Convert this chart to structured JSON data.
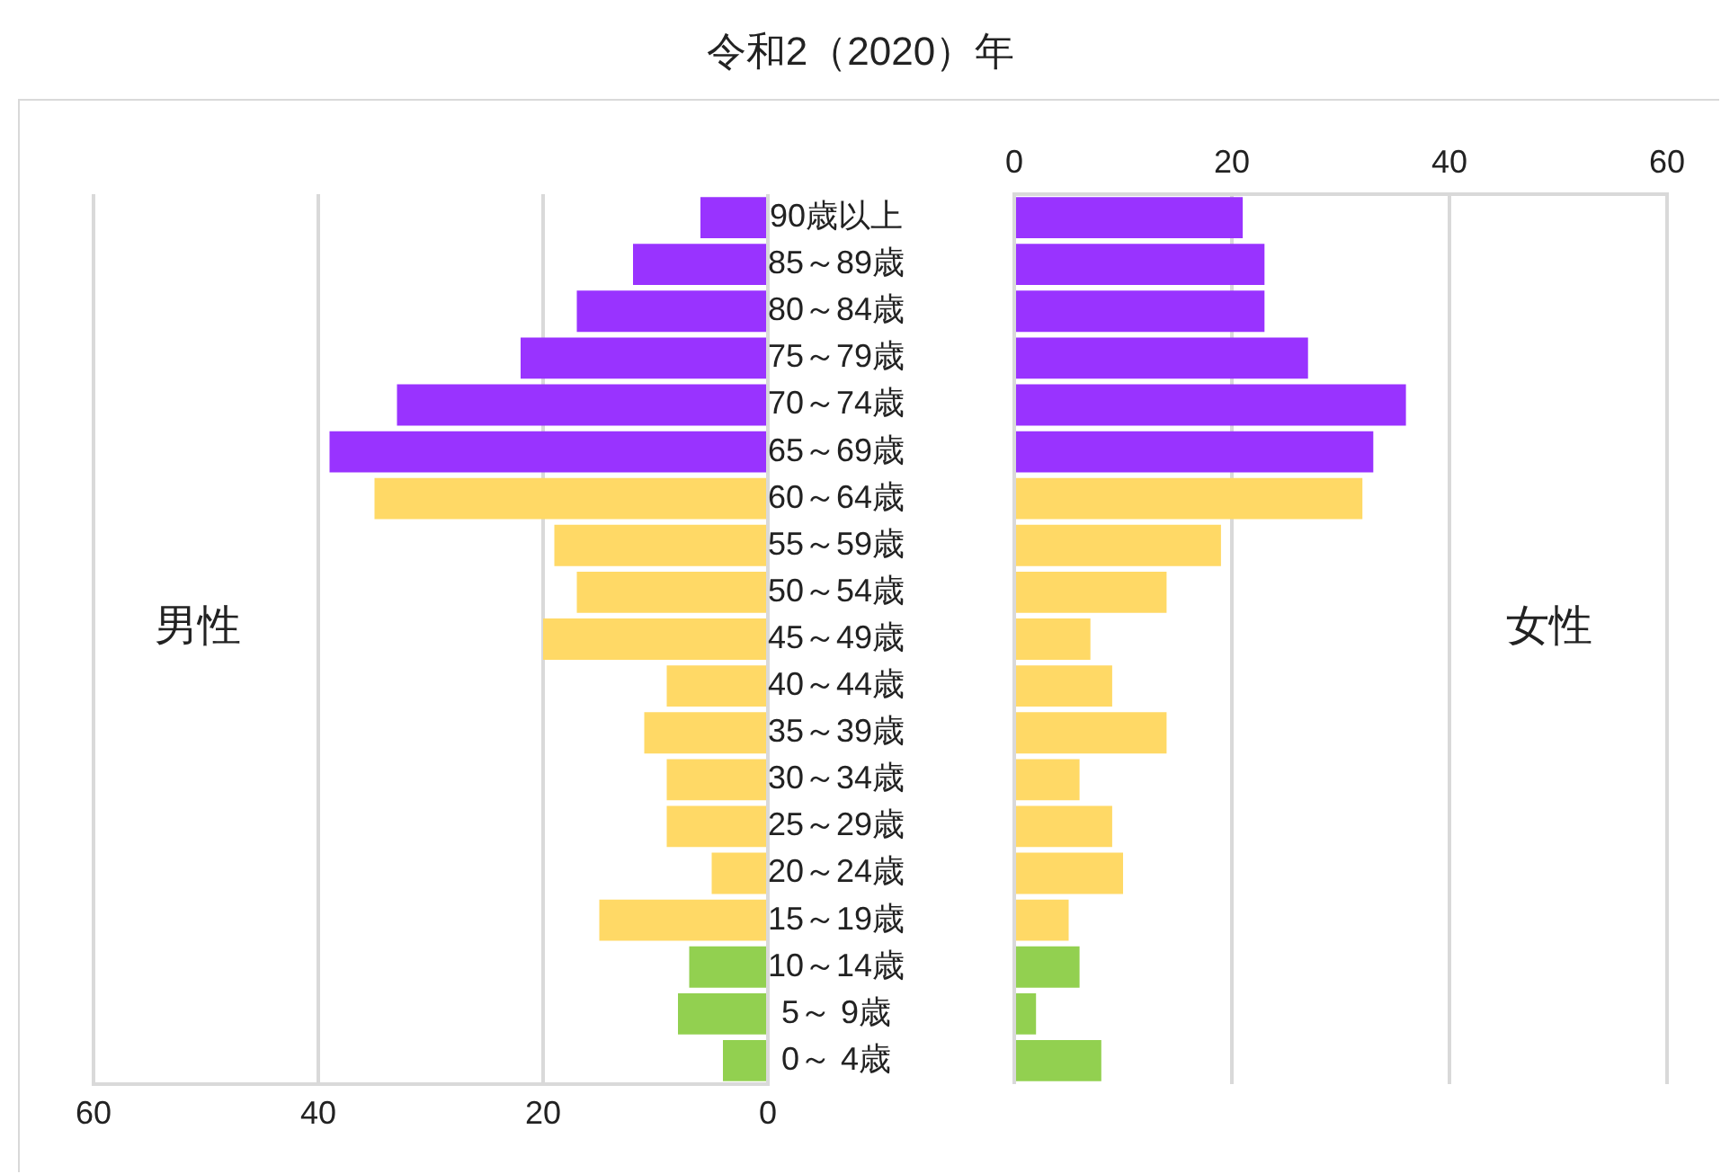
{
  "chart_data": [
    {
      "type": "bar",
      "orientation": "horizontal",
      "title": "令和2（2020）年",
      "annotations": [
        "男性"
      ],
      "categories": [
        "90歳以上",
        "85～89歳",
        "80～84歳",
        "75～79歳",
        "70～74歳",
        "65～69歳",
        "60～64歳",
        "55～59歳",
        "50～54歳",
        "45～49歳",
        "40～44歳",
        "35～39歳",
        "30～34歳",
        "25～29歳",
        "20～24歳",
        "15～19歳",
        "10～14歳",
        "5～ 9歳",
        "0～ 4歳"
      ],
      "values": [
        6,
        12,
        17,
        22,
        33,
        39,
        35,
        19,
        17,
        20,
        9,
        11,
        9,
        9,
        5,
        15,
        7,
        8,
        4
      ],
      "colors": [
        "#9933ff",
        "#9933ff",
        "#9933ff",
        "#9933ff",
        "#9933ff",
        "#9933ff",
        "#ffd966",
        "#ffd966",
        "#ffd966",
        "#ffd966",
        "#ffd966",
        "#ffd966",
        "#ffd966",
        "#ffd966",
        "#ffd966",
        "#ffd966",
        "#92d050",
        "#92d050",
        "#92d050"
      ],
      "xlim": [
        60,
        0
      ],
      "xticks": [
        60,
        40,
        20,
        0
      ],
      "grid": "x",
      "legend": false
    },
    {
      "type": "bar",
      "orientation": "horizontal",
      "annotations": [
        "女性"
      ],
      "values": [
        21,
        23,
        23,
        27,
        36,
        33,
        32,
        19,
        14,
        7,
        9,
        14,
        6,
        9,
        10,
        5,
        6,
        2,
        8
      ],
      "colors": [
        "#9933ff",
        "#9933ff",
        "#9933ff",
        "#9933ff",
        "#9933ff",
        "#9933ff",
        "#ffd966",
        "#ffd966",
        "#ffd966",
        "#ffd966",
        "#ffd966",
        "#ffd966",
        "#ffd966",
        "#ffd966",
        "#ffd966",
        "#ffd966",
        "#92d050",
        "#92d050",
        "#92d050"
      ],
      "xlim": [
        0,
        60
      ],
      "xticks": [
        0,
        20,
        40,
        60
      ],
      "grid": "x",
      "legend": false,
      "tick_labels": "x"
    }
  ]
}
